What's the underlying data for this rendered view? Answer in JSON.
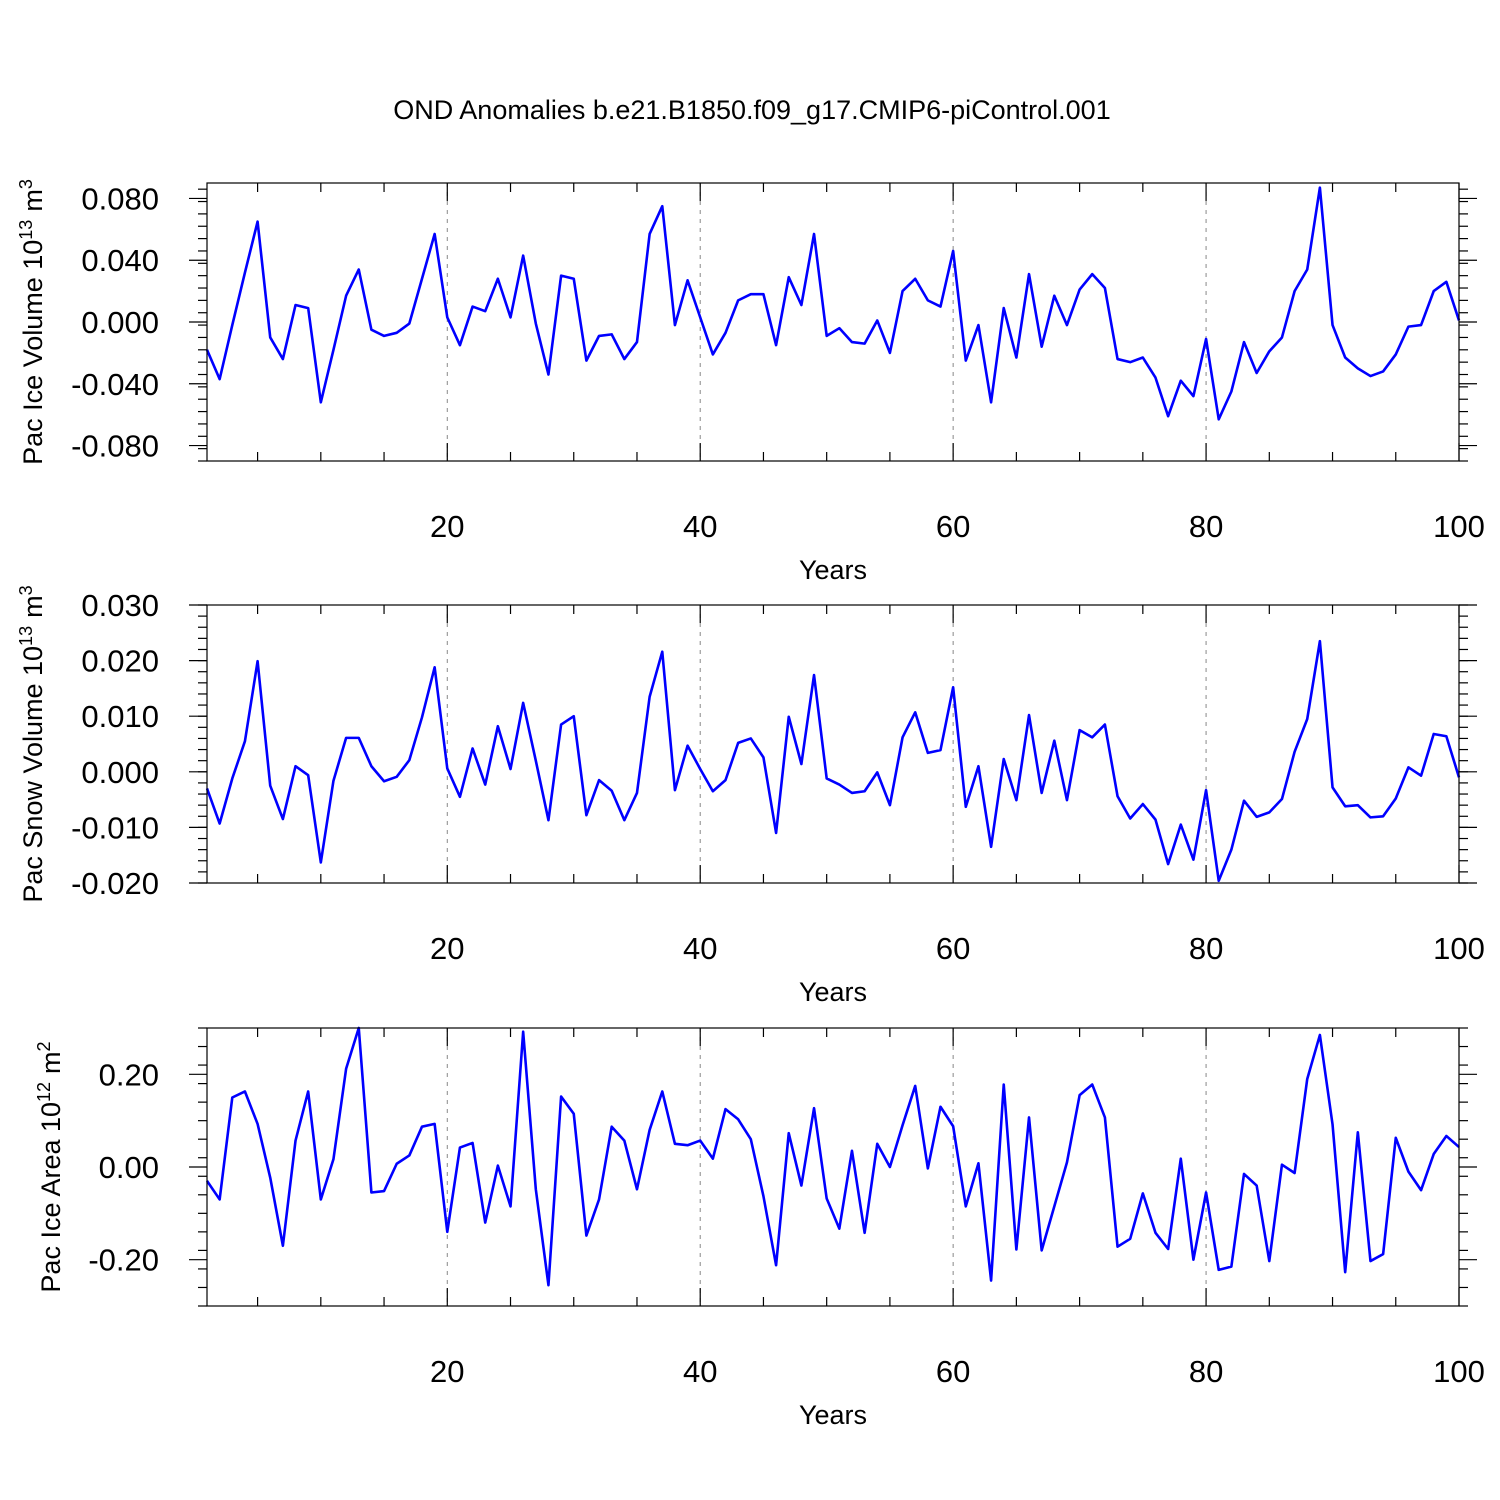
{
  "title": "OND Anomalies b.e21.B1850.f09_g17.CMIP6-piControl.001",
  "colors": {
    "series": "#0000ff",
    "axis": "#000000",
    "grid": "#888888",
    "background": "#ffffff"
  },
  "chart_data": [
    {
      "type": "line",
      "id": "ice-volume",
      "title": "",
      "ylabel": "Pac Ice Volume 10",
      "ylabel_sup": "13",
      "ylabel_unit": "m",
      "ylabel_unit_sup": "3",
      "xlabel": "Years",
      "xlim": [
        1,
        100
      ],
      "ylim": [
        -0.09,
        0.09
      ],
      "xticks": [
        20,
        40,
        60,
        80,
        100
      ],
      "xtick_labels": [
        "20",
        "40",
        "60",
        "80",
        "100"
      ],
      "yticks": [
        -0.08,
        -0.04,
        0.0,
        0.04,
        0.08
      ],
      "ytick_labels": [
        "-0.080",
        "-0.040",
        "0.000",
        "0.040",
        "0.080"
      ],
      "grid_x": [
        20,
        40,
        60,
        80
      ],
      "series": [
        {
          "name": "Pac Ice Volume",
          "x_start": 1,
          "values": [
            -0.018,
            -0.037,
            -0.002,
            0.032,
            0.065,
            -0.01,
            -0.024,
            0.011,
            0.009,
            -0.052,
            -0.018,
            0.017,
            0.034,
            -0.005,
            -0.009,
            -0.007,
            -0.001,
            0.028,
            0.057,
            0.003,
            -0.015,
            0.01,
            0.007,
            0.028,
            0.003,
            0.043,
            -0.001,
            -0.034,
            0.03,
            0.028,
            -0.025,
            -0.009,
            -0.008,
            -0.024,
            -0.013,
            0.057,
            0.075,
            -0.002,
            0.027,
            0.003,
            -0.021,
            -0.007,
            0.014,
            0.018,
            0.018,
            -0.015,
            0.029,
            0.011,
            0.057,
            -0.009,
            -0.004,
            -0.013,
            -0.014,
            0.001,
            -0.02,
            0.02,
            0.028,
            0.014,
            0.01,
            0.046,
            -0.025,
            -0.002,
            -0.052,
            0.009,
            -0.023,
            0.031,
            -0.016,
            0.017,
            -0.002,
            0.021,
            0.031,
            0.022,
            -0.024,
            -0.026,
            -0.023,
            -0.036,
            -0.061,
            -0.038,
            -0.048,
            -0.011,
            -0.063,
            -0.045,
            -0.013,
            -0.033,
            -0.019,
            -0.01,
            0.02,
            0.034,
            0.087,
            -0.002,
            -0.023,
            -0.03,
            -0.035,
            -0.032,
            -0.021,
            -0.003,
            -0.002,
            0.02,
            0.026,
            0.001
          ]
        }
      ]
    },
    {
      "type": "line",
      "id": "snow-volume",
      "title": "",
      "ylabel": "Pac Snow Volume 10",
      "ylabel_sup": "13",
      "ylabel_unit": "m",
      "ylabel_unit_sup": "3",
      "xlabel": "Years",
      "xlim": [
        1,
        100
      ],
      "ylim": [
        -0.02,
        0.03
      ],
      "xticks": [
        20,
        40,
        60,
        80,
        100
      ],
      "xtick_labels": [
        "20",
        "40",
        "60",
        "80",
        "100"
      ],
      "yticks": [
        -0.02,
        -0.01,
        0.0,
        0.01,
        0.02,
        0.03
      ],
      "ytick_labels": [
        "-0.020",
        "-0.010",
        "0.000",
        "0.010",
        "0.020",
        "0.030"
      ],
      "grid_x": [
        20,
        40,
        60,
        80
      ],
      "series": [
        {
          "name": "Pac Snow Volume",
          "x_start": 1,
          "values": [
            -0.003,
            -0.0093,
            -0.0012,
            0.0055,
            0.0199,
            -0.0025,
            -0.0085,
            0.001,
            -0.0006,
            -0.0163,
            -0.0016,
            0.0061,
            0.0061,
            0.001,
            -0.0017,
            -0.0009,
            0.0021,
            0.0098,
            0.0188,
            0.0006,
            -0.0045,
            0.0042,
            -0.0023,
            0.0082,
            0.0005,
            0.0124,
            0.002,
            -0.0087,
            0.0085,
            0.01,
            -0.0078,
            -0.0015,
            -0.0034,
            -0.0087,
            -0.0038,
            0.0135,
            0.0216,
            -0.0033,
            0.0047,
            0.0005,
            -0.0035,
            -0.0015,
            0.0052,
            0.006,
            0.0026,
            -0.011,
            0.0099,
            0.0014,
            0.0174,
            -0.0012,
            -0.0023,
            -0.0038,
            -0.0035,
            -0.0001,
            -0.006,
            0.0062,
            0.0107,
            0.0034,
            0.0039,
            0.0152,
            -0.0063,
            0.001,
            -0.0135,
            0.0023,
            -0.0051,
            0.0102,
            -0.0038,
            0.0056,
            -0.0051,
            0.0075,
            0.0062,
            0.0085,
            -0.0044,
            -0.0084,
            -0.0058,
            -0.0086,
            -0.0166,
            -0.0095,
            -0.0158,
            -0.0033,
            -0.0196,
            -0.014,
            -0.0052,
            -0.0081,
            -0.0073,
            -0.0049,
            0.0036,
            0.0095,
            0.0235,
            -0.0028,
            -0.0062,
            -0.006,
            -0.0082,
            -0.008,
            -0.0048,
            0.0008,
            -0.0007,
            0.0068,
            0.0064,
            -0.001
          ]
        }
      ]
    },
    {
      "type": "line",
      "id": "ice-area",
      "title": "",
      "ylabel": "Pac Ice Area 10",
      "ylabel_sup": "12",
      "ylabel_unit": "m",
      "ylabel_unit_sup": "2",
      "xlabel": "Years",
      "xlim": [
        1,
        100
      ],
      "ylim": [
        -0.3,
        0.3
      ],
      "xticks": [
        20,
        40,
        60,
        80,
        100
      ],
      "xtick_labels": [
        "20",
        "40",
        "60",
        "80",
        "100"
      ],
      "yticks": [
        -0.2,
        0.0,
        0.2
      ],
      "ytick_labels": [
        "-0.20",
        "0.00",
        "0.20"
      ],
      "grid_x": [
        20,
        40,
        60,
        80
      ],
      "series": [
        {
          "name": "Pac Ice Area",
          "x_start": 1,
          "values": [
            -0.03,
            -0.07,
            0.15,
            0.163,
            0.093,
            -0.023,
            -0.17,
            0.057,
            0.163,
            -0.07,
            0.017,
            0.212,
            0.3,
            -0.055,
            -0.052,
            0.007,
            0.025,
            0.087,
            0.093,
            -0.14,
            0.042,
            0.052,
            -0.12,
            0.003,
            -0.085,
            0.292,
            -0.048,
            -0.255,
            0.152,
            0.115,
            -0.148,
            -0.07,
            0.087,
            0.057,
            -0.048,
            0.08,
            0.163,
            0.05,
            0.047,
            0.057,
            0.018,
            0.125,
            0.103,
            0.06,
            -0.063,
            -0.212,
            0.073,
            -0.04,
            0.127,
            -0.068,
            -0.133,
            0.035,
            -0.142,
            0.05,
            0.0,
            0.09,
            0.175,
            -0.003,
            0.13,
            0.088,
            -0.085,
            0.008,
            -0.245,
            0.178,
            -0.178,
            0.107,
            -0.18,
            -0.085,
            0.01,
            0.155,
            0.178,
            0.107,
            -0.172,
            -0.155,
            -0.057,
            -0.142,
            -0.177,
            0.018,
            -0.2,
            -0.055,
            -0.222,
            -0.215,
            -0.015,
            -0.04,
            -0.203,
            0.005,
            -0.013,
            0.19,
            0.285,
            0.092,
            -0.227,
            0.075,
            -0.203,
            -0.188,
            0.063,
            -0.01,
            -0.05,
            0.028,
            0.067,
            0.043
          ]
        }
      ]
    }
  ]
}
